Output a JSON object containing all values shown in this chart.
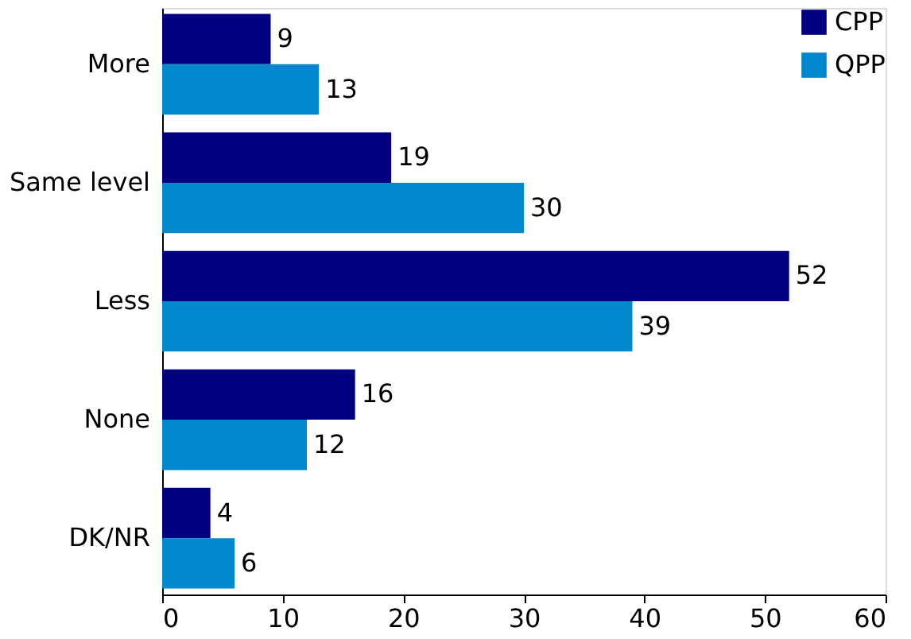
{
  "chart_data": {
    "type": "bar",
    "orientation": "horizontal",
    "categories": [
      "More",
      "Same level",
      "Less",
      "None",
      "DK/NR"
    ],
    "series": [
      {
        "name": "CPP",
        "color": "#000080",
        "values": [
          9,
          19,
          52,
          16,
          4
        ]
      },
      {
        "name": "QPP",
        "color": "#0088cc",
        "values": [
          13,
          30,
          39,
          12,
          6
        ]
      }
    ],
    "xlim": [
      0,
      60
    ],
    "xticks": [
      0,
      10,
      20,
      30,
      40,
      50,
      60
    ],
    "grid": false,
    "legend": "top right",
    "data_labels": true
  }
}
